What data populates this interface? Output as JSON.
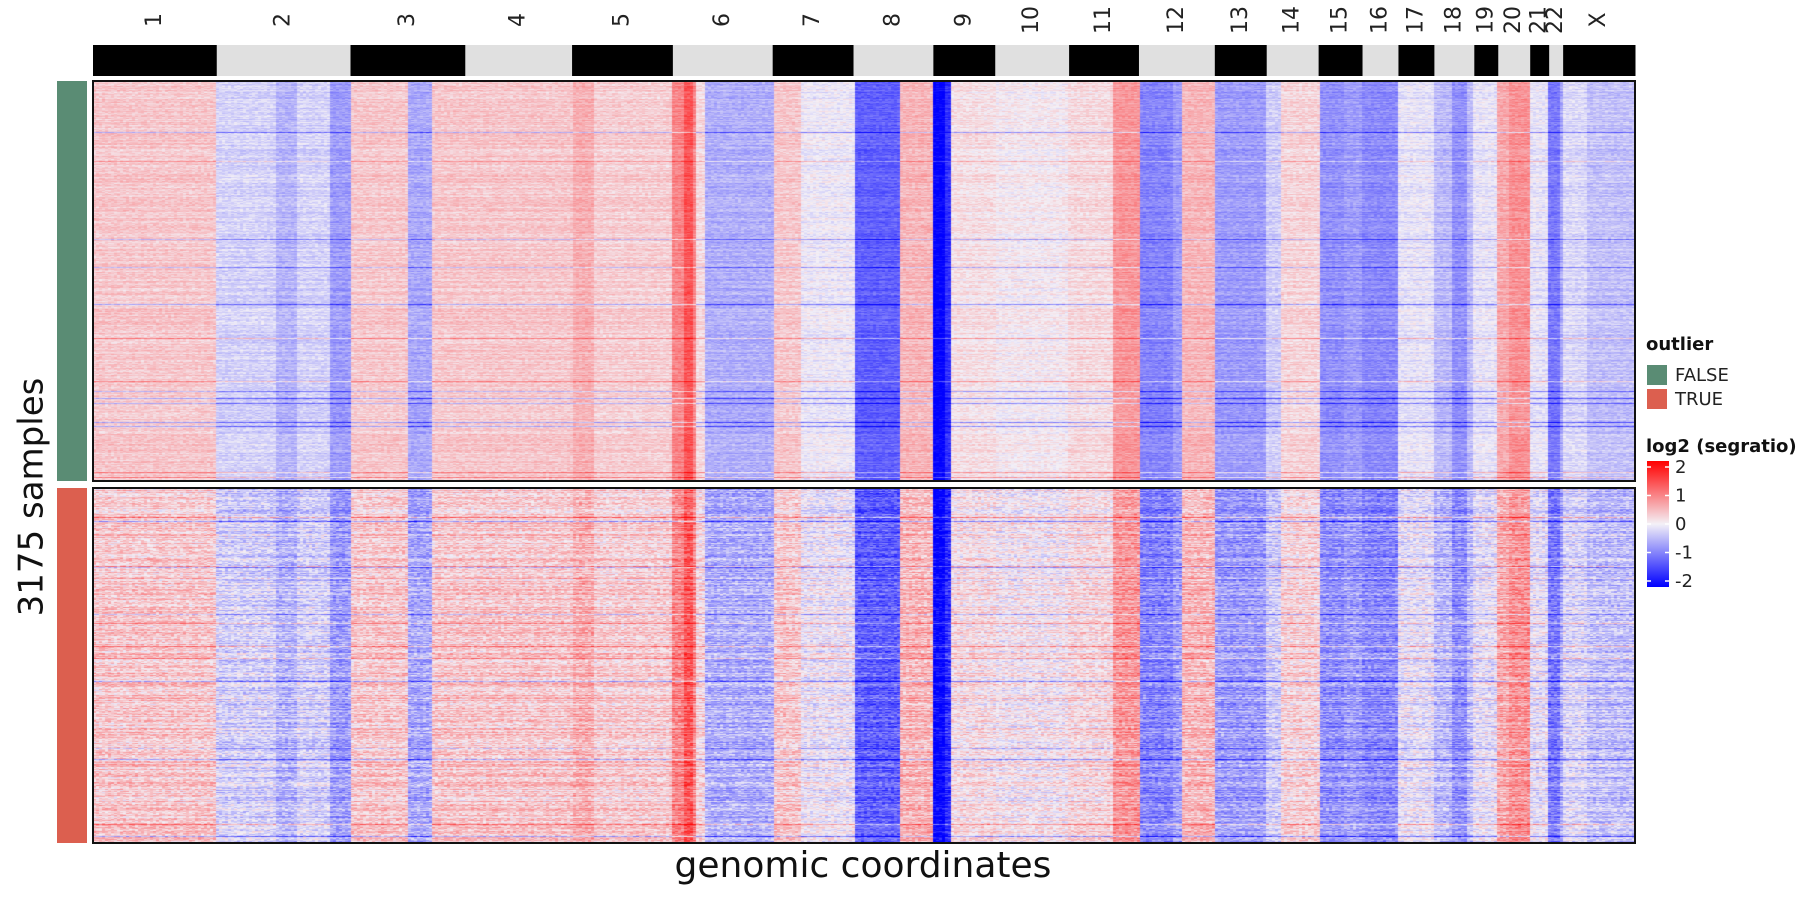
{
  "chart_data": {
    "type": "heatmap",
    "title": "",
    "xlabel": "genomic coordinates",
    "ylabel": "3175 samples",
    "chromosomes": [
      {
        "name": "1",
        "rel": 124,
        "value": 0.35
      },
      {
        "name": "2",
        "rel": 134,
        "value": -0.25
      },
      {
        "name": "3",
        "rel": 115,
        "value": 0.35
      },
      {
        "name": "4",
        "rel": 107,
        "value": 0.35
      },
      {
        "name": "5",
        "rel": 101,
        "value": 0.3
      },
      {
        "name": "6",
        "rel": 100,
        "value": 0.2
      },
      {
        "name": "7",
        "rel": 81,
        "value": 0.15
      },
      {
        "name": "8",
        "rel": 80,
        "value": -0.6
      },
      {
        "name": "9",
        "rel": 62,
        "value": -0.3
      },
      {
        "name": "10",
        "rel": 74,
        "value": 0.05
      },
      {
        "name": "11",
        "rel": 70,
        "value": 0.2
      },
      {
        "name": "12",
        "rel": 76,
        "value": -0.7
      },
      {
        "name": "13",
        "rel": 52,
        "value": -0.7
      },
      {
        "name": "14",
        "rel": 52,
        "value": 0.25
      },
      {
        "name": "15",
        "rel": 44,
        "value": -0.7
      },
      {
        "name": "16",
        "rel": 36,
        "value": -0.65
      },
      {
        "name": "17",
        "rel": 36,
        "value": -0.1
      },
      {
        "name": "18",
        "rel": 40,
        "value": -0.45
      },
      {
        "name": "19",
        "rel": 24,
        "value": -0.1
      },
      {
        "name": "20",
        "rel": 32,
        "value": 0.6
      },
      {
        "name": "21",
        "rel": 19,
        "value": 0.0
      },
      {
        "name": "22",
        "rel": 14,
        "value": -0.6
      },
      {
        "name": "X",
        "rel": 72,
        "value": -0.4
      }
    ],
    "features": [
      {
        "chrom": "2",
        "start": 0.45,
        "end": 0.6,
        "value": -0.5
      },
      {
        "chrom": "2",
        "start": 0.85,
        "end": 1.0,
        "value": -0.7
      },
      {
        "chrom": "3",
        "start": 0.5,
        "end": 0.72,
        "value": -0.6
      },
      {
        "chrom": "5",
        "start": 0.0,
        "end": 0.22,
        "value": 0.55
      },
      {
        "chrom": "6",
        "start": 0.0,
        "end": 0.22,
        "value": 0.9
      },
      {
        "chrom": "6",
        "start": 0.1,
        "end": 0.2,
        "value": 1.3
      },
      {
        "chrom": "6",
        "start": 0.32,
        "end": 1.0,
        "value": -0.55
      },
      {
        "chrom": "7",
        "start": 0.0,
        "end": 0.35,
        "value": 0.35
      },
      {
        "chrom": "7",
        "start": 0.35,
        "end": 1.0,
        "value": -0.05
      },
      {
        "chrom": "8",
        "start": 0.0,
        "end": 0.6,
        "value": -1.2
      },
      {
        "chrom": "8",
        "start": 0.6,
        "end": 1.0,
        "value": 0.5
      },
      {
        "chrom": "9",
        "start": 0.0,
        "end": 0.2,
        "value": -2.0
      },
      {
        "chrom": "9",
        "start": 0.2,
        "end": 0.28,
        "value": -1.6
      },
      {
        "chrom": "9",
        "start": 0.28,
        "end": 1.0,
        "value": 0.15
      },
      {
        "chrom": "11",
        "start": 0.62,
        "end": 1.0,
        "value": 0.75
      },
      {
        "chrom": "12",
        "start": 0.0,
        "end": 0.45,
        "value": -0.9
      },
      {
        "chrom": "12",
        "start": 0.55,
        "end": 1.0,
        "value": 0.5
      },
      {
        "chrom": "14",
        "start": 0.0,
        "end": 0.3,
        "value": -0.3
      },
      {
        "chrom": "15",
        "start": 0.0,
        "end": 0.6,
        "value": -0.8
      },
      {
        "chrom": "16",
        "start": 0.0,
        "end": 1.0,
        "value": -0.85
      },
      {
        "chrom": "18",
        "start": 0.45,
        "end": 0.85,
        "value": -0.8
      },
      {
        "chrom": "20",
        "start": 0.3,
        "end": 1.0,
        "value": 0.8
      },
      {
        "chrom": "21",
        "start": 0.0,
        "end": 1.0,
        "value": -0.1
      },
      {
        "chrom": "22",
        "start": 0.0,
        "end": 0.7,
        "value": -1.0
      },
      {
        "chrom": "X",
        "start": 0.0,
        "end": 0.35,
        "value": -0.2
      }
    ],
    "groups": [
      {
        "label": "FALSE",
        "color": "#5a8c74",
        "rel_rows": 1.13,
        "noise": 0.22
      },
      {
        "label": "TRUE",
        "color": "#dc5f4f",
        "rel_rows": 1.0,
        "noise": 0.42
      }
    ],
    "color_scale": {
      "min": -2,
      "max": 2,
      "stops": [
        {
          "value": -2,
          "color": "#0000ff"
        },
        {
          "value": 0,
          "color": "#f4f1f7"
        },
        {
          "value": 2,
          "color": "#ff0000"
        }
      ]
    },
    "legend": {
      "outlier_title": "outlier",
      "scale_title": "log2 (segratio)",
      "scale_ticks": [
        "2",
        "1",
        "0",
        "-1",
        "-2"
      ],
      "scale_tick_values": [
        2,
        1,
        0,
        -1,
        -2
      ],
      "placement": "right"
    },
    "chrom_bar_colors": [
      "#000000",
      "#e0e0e0"
    ]
  }
}
